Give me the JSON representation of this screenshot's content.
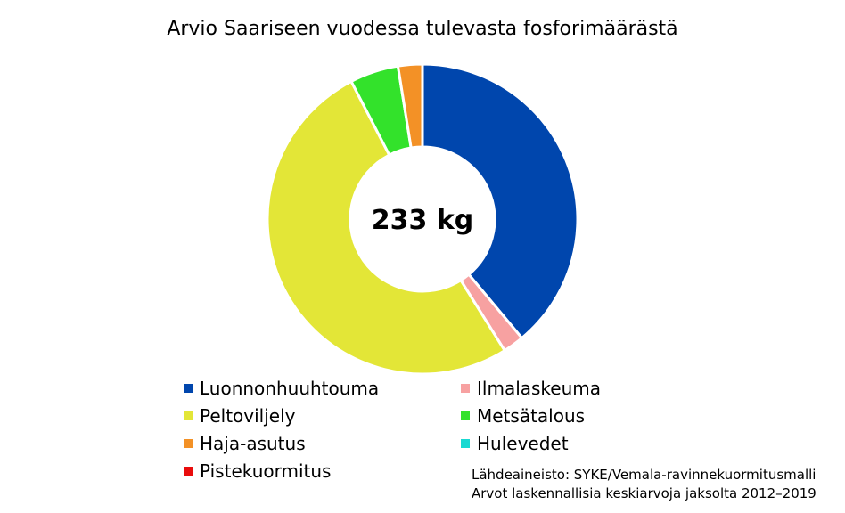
{
  "chart_data": {
    "type": "pie",
    "title": "Arvio Saariseen vuodessa tulevasta fosforimäärästä",
    "center_label": "233 kg",
    "categories": [
      "Luonnonhuuhtouma",
      "Ilmalaskeuma",
      "Peltoviljely",
      "Metsätalous",
      "Haja-asutus",
      "Hulevedet",
      "Pistekuormitus"
    ],
    "values": [
      90.7,
      5.1,
      119.5,
      11.8,
      5.9,
      0,
      0
    ],
    "colors": [
      "#0046AD",
      "#F7A1A1",
      "#E3E637",
      "#33E22B",
      "#F39126",
      "#19D9D2",
      "#E90C0C"
    ],
    "legend_position": "bottom",
    "source": {
      "line1": "Lähdeaineisto: SYKE/Vemala-ravinnekuormitusmalli",
      "line2": "Arvot laskennallisia keskiarvoja jaksolta 2012–2019"
    }
  }
}
